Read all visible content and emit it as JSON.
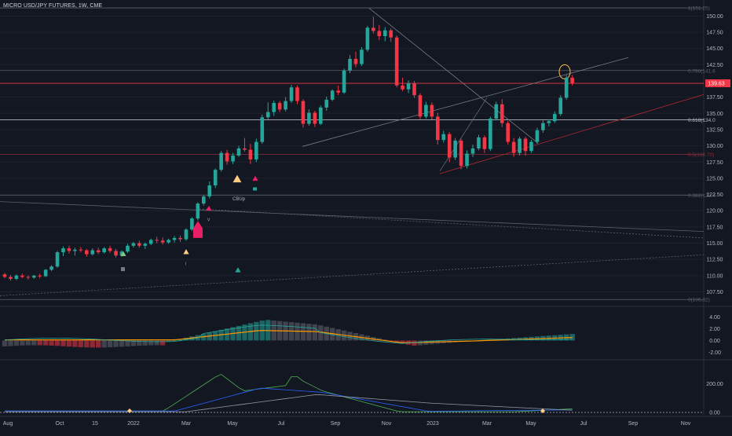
{
  "symbol": {
    "name": "MICRO USD/JPY FUTURES",
    "interval": "1W",
    "exchange": "CME"
  },
  "price_axis": {
    "ticks": [
      "150.00",
      "147.50",
      "145.00",
      "142.50",
      "137.50",
      "135.00",
      "132.50",
      "130.00",
      "127.50",
      "125.00",
      "122.50",
      "120.00",
      "117.50",
      "115.00",
      "112.50",
      "110.00",
      "107.50"
    ],
    "current_price": "139.63",
    "current_price_color": "#f23645"
  },
  "indicator_axis_1": {
    "ticks": [
      "4.00",
      "2.00",
      "0.00",
      "-2.00"
    ]
  },
  "indicator_axis_2": {
    "ticks": [
      "200.00",
      "0.00"
    ]
  },
  "time_axis": {
    "labels": [
      "Aug",
      "Oct",
      "15",
      "2022",
      "Mar",
      "May",
      "Jul",
      "Sep",
      "Nov",
      "2023",
      "Mar",
      "May",
      "Jul",
      "Sep",
      "Nov"
    ]
  },
  "fib_levels": [
    {
      "label": "1(151.25)",
      "value": 151.25,
      "color": "#5d606b"
    },
    {
      "label": "0.786(141.6",
      "value": 141.6,
      "color": "#5d606b"
    },
    {
      "label": "0.618(134.0",
      "value": 134.0,
      "color": "#b2b5be"
    },
    {
      "label": "0.5(128.70)",
      "value": 128.7,
      "color": "#8b2f3c"
    },
    {
      "label": "0.382(122.4",
      "value": 122.4,
      "color": "#5d606b"
    },
    {
      "label": "0(106.32)",
      "value": 106.32,
      "color": "#5d606b"
    }
  ],
  "annotations": {
    "signal_label": "CBUp",
    "small_label": "V",
    "small_label_2": "I"
  },
  "colors": {
    "up": "#26a69a",
    "down": "#f23645",
    "background": "#131722",
    "grid": "#1e222d",
    "ma_orange": "#ff9800",
    "macd_teal": "#26a69a",
    "line_blue": "#2962ff",
    "line_green": "#4caf50",
    "line_gray": "#9598a1"
  },
  "chart_data": {
    "type": "candlestick",
    "title": "MICRO USD/JPY FUTURES, 1W, CME",
    "ylim": [
      105.5,
      151.5
    ],
    "candles": [
      [
        110.2,
        110.4,
        109.6,
        109.8
      ],
      [
        109.8,
        110.1,
        109.2,
        109.5
      ],
      [
        109.5,
        110.2,
        109.3,
        110.0
      ],
      [
        110.0,
        110.3,
        109.6,
        109.8
      ],
      [
        109.8,
        110.0,
        109.4,
        109.7
      ],
      [
        109.7,
        110.1,
        109.5,
        110.0
      ],
      [
        110.0,
        110.3,
        109.6,
        109.9
      ],
      [
        109.9,
        111.0,
        109.8,
        110.9
      ],
      [
        110.9,
        111.6,
        110.7,
        111.4
      ],
      [
        111.4,
        113.8,
        111.2,
        113.6
      ],
      [
        113.6,
        114.5,
        113.0,
        114.2
      ],
      [
        114.2,
        114.6,
        113.4,
        113.8
      ],
      [
        113.8,
        114.3,
        113.1,
        114.0
      ],
      [
        114.0,
        114.4,
        113.6,
        113.9
      ],
      [
        113.9,
        114.1,
        112.9,
        113.3
      ],
      [
        113.3,
        114.2,
        113.1,
        113.9
      ],
      [
        113.9,
        114.3,
        113.3,
        113.6
      ],
      [
        113.6,
        114.4,
        113.4,
        114.2
      ],
      [
        114.2,
        114.6,
        113.5,
        113.8
      ],
      [
        113.8,
        114.1,
        112.8,
        113.1
      ],
      [
        113.1,
        113.9,
        112.9,
        113.7
      ],
      [
        113.7,
        114.9,
        113.5,
        114.6
      ],
      [
        114.6,
        115.2,
        114.3,
        115.0
      ],
      [
        115.0,
        115.4,
        114.3,
        114.6
      ],
      [
        114.6,
        115.1,
        114.1,
        114.9
      ],
      [
        114.9,
        115.7,
        114.7,
        115.5
      ],
      [
        115.5,
        116.0,
        115.0,
        115.4
      ],
      [
        115.4,
        115.9,
        114.8,
        115.1
      ],
      [
        115.1,
        115.7,
        114.9,
        115.5
      ],
      [
        115.5,
        116.1,
        115.1,
        115.8
      ],
      [
        115.8,
        116.2,
        115.2,
        115.6
      ],
      [
        115.6,
        117.3,
        115.4,
        117.1
      ],
      [
        117.1,
        119.0,
        116.9,
        118.8
      ],
      [
        118.8,
        121.3,
        118.5,
        121.1
      ],
      [
        121.1,
        122.4,
        120.8,
        122.2
      ],
      [
        122.2,
        124.5,
        121.9,
        123.9
      ],
      [
        123.9,
        126.5,
        123.5,
        126.3
      ],
      [
        126.3,
        129.2,
        126.0,
        128.9
      ],
      [
        128.9,
        129.4,
        127.1,
        127.6
      ],
      [
        127.6,
        128.9,
        127.2,
        128.5
      ],
      [
        128.5,
        130.0,
        128.3,
        129.6
      ],
      [
        129.6,
        131.2,
        129.1,
        129.4
      ],
      [
        129.4,
        130.3,
        127.2,
        127.9
      ],
      [
        127.9,
        131.1,
        127.5,
        130.6
      ],
      [
        130.6,
        134.8,
        130.3,
        134.4
      ],
      [
        134.4,
        136.7,
        134.1,
        135.2
      ],
      [
        135.2,
        137.0,
        134.6,
        136.6
      ],
      [
        136.6,
        136.9,
        135.2,
        135.6
      ],
      [
        135.6,
        137.5,
        135.3,
        136.9
      ],
      [
        136.9,
        139.4,
        136.6,
        139.0
      ],
      [
        139.0,
        139.3,
        136.4,
        136.9
      ],
      [
        136.9,
        137.2,
        132.8,
        133.4
      ],
      [
        133.4,
        135.6,
        133.1,
        135.1
      ],
      [
        135.1,
        135.4,
        132.9,
        133.4
      ],
      [
        133.4,
        136.2,
        133.2,
        135.9
      ],
      [
        135.9,
        137.6,
        135.4,
        137.1
      ],
      [
        137.1,
        138.7,
        136.9,
        138.5
      ],
      [
        138.5,
        139.3,
        137.8,
        138.2
      ],
      [
        138.2,
        141.9,
        138.0,
        141.6
      ],
      [
        141.6,
        144.0,
        141.2,
        143.4
      ],
      [
        143.4,
        144.5,
        142.1,
        142.6
      ],
      [
        142.6,
        145.2,
        142.3,
        144.8
      ],
      [
        144.8,
        148.5,
        144.5,
        148.2
      ],
      [
        148.2,
        149.9,
        147.3,
        147.7
      ],
      [
        147.7,
        148.6,
        146.3,
        146.9
      ],
      [
        146.9,
        148.3,
        146.1,
        147.8
      ],
      [
        147.8,
        148.1,
        146.0,
        146.7
      ],
      [
        146.7,
        147.0,
        139.0,
        139.3
      ],
      [
        139.3,
        140.5,
        138.4,
        138.7
      ],
      [
        138.7,
        140.1,
        138.1,
        139.6
      ],
      [
        139.6,
        140.0,
        137.4,
        137.8
      ],
      [
        137.8,
        138.1,
        134.1,
        134.5
      ],
      [
        134.5,
        136.8,
        134.2,
        136.3
      ],
      [
        136.3,
        136.7,
        134.0,
        134.5
      ],
      [
        134.5,
        135.1,
        130.2,
        130.9
      ],
      [
        130.9,
        132.3,
        130.5,
        131.8
      ],
      [
        131.8,
        132.1,
        127.5,
        128.2
      ],
      [
        128.2,
        131.2,
        127.8,
        130.8
      ],
      [
        130.8,
        131.1,
        126.4,
        126.9
      ],
      [
        126.9,
        129.3,
        126.5,
        128.8
      ],
      [
        128.8,
        130.2,
        128.3,
        129.6
      ],
      [
        129.6,
        131.7,
        129.3,
        131.3
      ],
      [
        131.3,
        131.6,
        128.9,
        129.5
      ],
      [
        129.5,
        134.5,
        129.2,
        134.2
      ],
      [
        134.2,
        136.8,
        133.9,
        136.4
      ],
      [
        136.4,
        137.2,
        132.9,
        133.5
      ],
      [
        133.5,
        133.8,
        130.2,
        130.6
      ],
      [
        130.6,
        131.2,
        128.3,
        128.9
      ],
      [
        128.9,
        131.4,
        128.5,
        131.1
      ],
      [
        131.1,
        131.4,
        128.5,
        129.2
      ],
      [
        129.2,
        130.9,
        128.9,
        130.6
      ],
      [
        130.6,
        132.8,
        130.3,
        132.4
      ],
      [
        132.4,
        133.9,
        132.0,
        133.5
      ],
      [
        133.5,
        134.1,
        133.0,
        133.8
      ],
      [
        133.8,
        135.3,
        133.5,
        134.9
      ],
      [
        134.9,
        137.8,
        134.6,
        137.4
      ],
      [
        137.4,
        140.9,
        137.1,
        140.5
      ],
      [
        140.5,
        140.9,
        139.3,
        139.63
      ]
    ]
  }
}
